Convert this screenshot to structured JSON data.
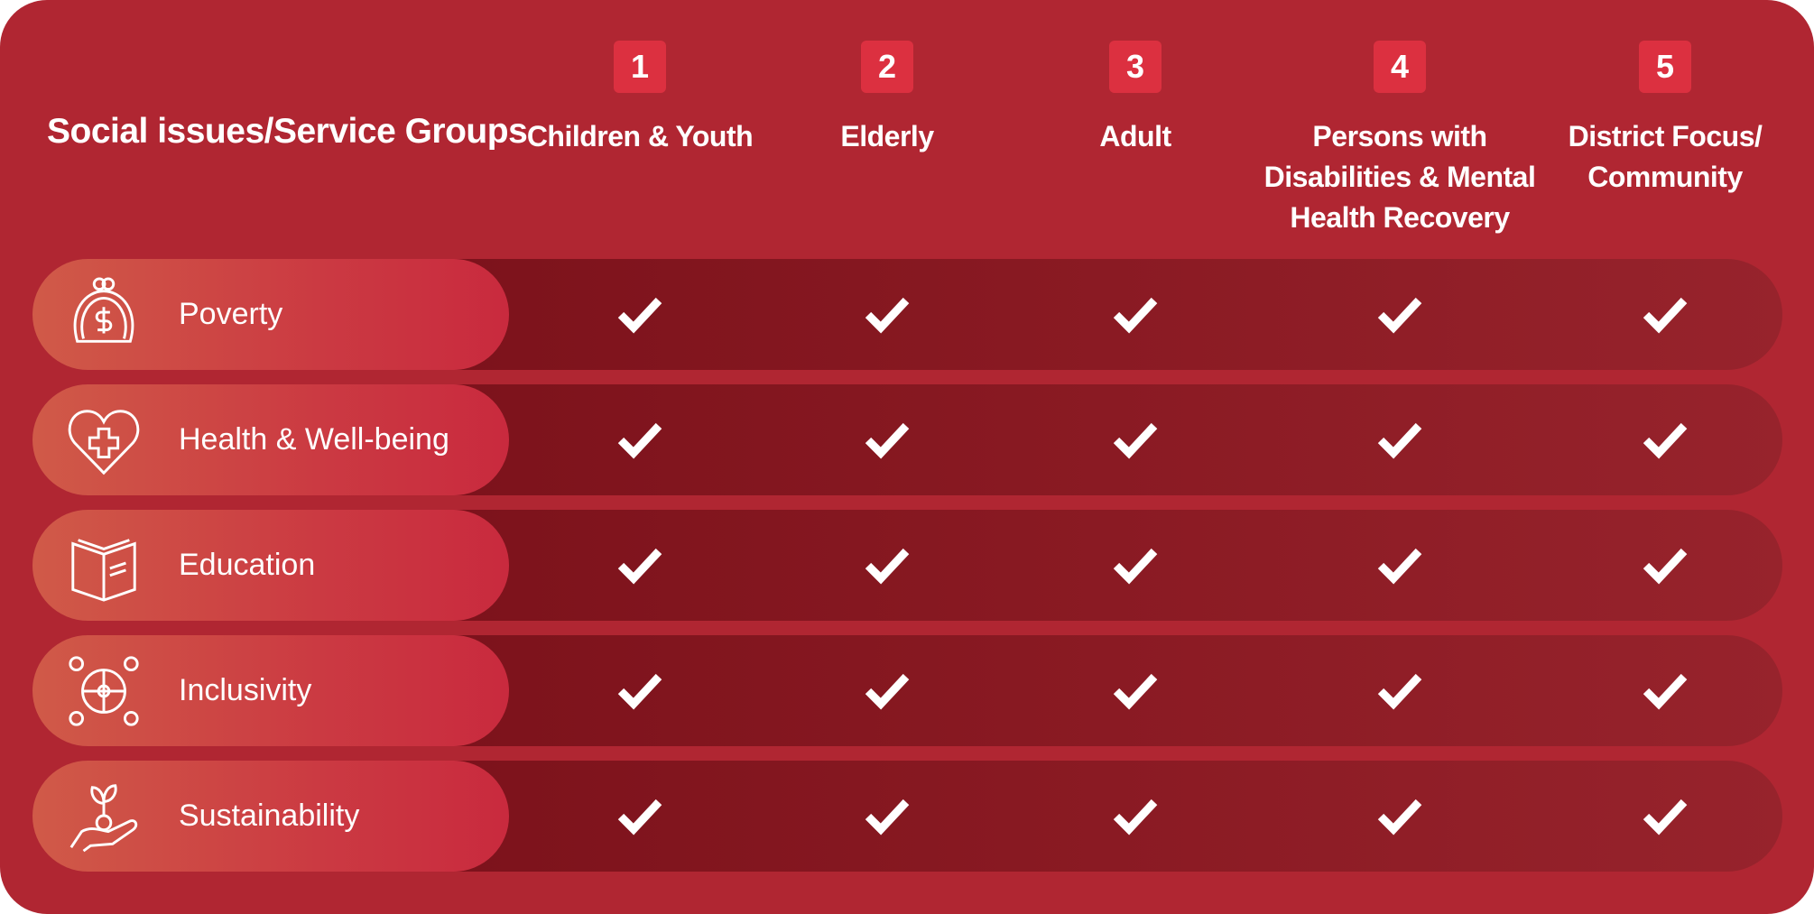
{
  "title": "Social issues/Service Groups",
  "columns": [
    {
      "number": "1",
      "label": "Children & Youth"
    },
    {
      "number": "2",
      "label": "Elderly"
    },
    {
      "number": "3",
      "label": "Adult"
    },
    {
      "number": "4",
      "label": "Persons with Disabilities & Mental Health Recovery"
    },
    {
      "number": "5",
      "label": "District Focus/ Community"
    }
  ],
  "rows": [
    {
      "label": "Poverty",
      "icon": "coin-purse-icon",
      "checks": [
        true,
        true,
        true,
        true,
        true
      ]
    },
    {
      "label": "Health & Well-being",
      "icon": "heart-cross-icon",
      "checks": [
        true,
        true,
        true,
        true,
        true
      ]
    },
    {
      "label": "Education",
      "icon": "book-icon",
      "checks": [
        true,
        true,
        true,
        true,
        true
      ]
    },
    {
      "label": "Inclusivity",
      "icon": "puzzle-people-icon",
      "checks": [
        true,
        true,
        true,
        true,
        true
      ]
    },
    {
      "label": "Sustainability",
      "icon": "hand-sprout-icon",
      "checks": [
        true,
        true,
        true,
        true,
        true
      ]
    }
  ],
  "colors": {
    "background": "#b02632",
    "badge": "#dc3040",
    "band": "#7c121b",
    "pill_start": "#d05a48",
    "pill_end": "#c92a3e"
  }
}
